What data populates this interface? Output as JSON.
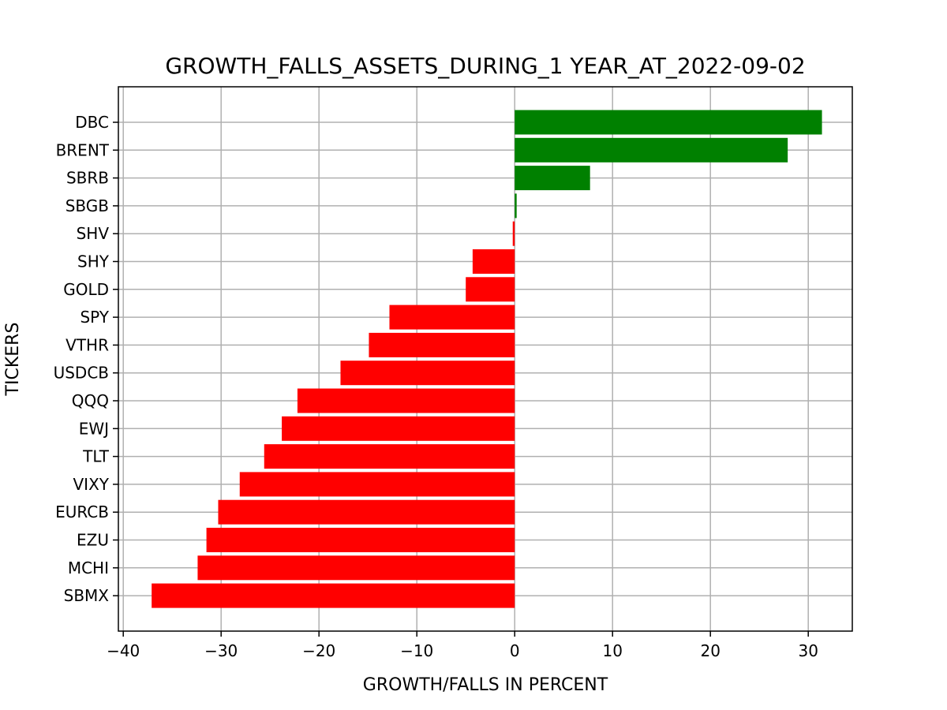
{
  "chart_data": {
    "type": "bar",
    "orientation": "horizontal",
    "title": "GROWTH_FALLS_ASSETS_DURING_1 YEAR_AT_2022-09-02",
    "xlabel": "GROWTH/FALLS IN PERCENT",
    "ylabel": "TICKERS",
    "xlim": [
      -40.5,
      34.5
    ],
    "xticks": [
      -40,
      -30,
      -20,
      -10,
      0,
      10,
      20,
      30
    ],
    "xtick_labels": [
      "−40",
      "−30",
      "−20",
      "−10",
      "0",
      "10",
      "20",
      "30"
    ],
    "grid": true,
    "categories": [
      "DBC",
      "BRENT",
      "SBRB",
      "SBGB",
      "SHV",
      "SHY",
      "GOLD",
      "SPY",
      "VTHR",
      "USDCB",
      "QQQ",
      "EWJ",
      "TLT",
      "VIXY",
      "EURCB",
      "EZU",
      "MCHI",
      "SBMX"
    ],
    "values": [
      31.4,
      27.9,
      7.7,
      0.2,
      -0.2,
      -4.3,
      -5.0,
      -12.8,
      -14.9,
      -17.8,
      -22.2,
      -23.8,
      -25.6,
      -28.1,
      -30.3,
      -31.5,
      -32.4,
      -37.1
    ],
    "colors": {
      "positive": "#008000",
      "negative": "#ff0000",
      "grid": "#b0b0b0",
      "axis": "#000000"
    }
  }
}
